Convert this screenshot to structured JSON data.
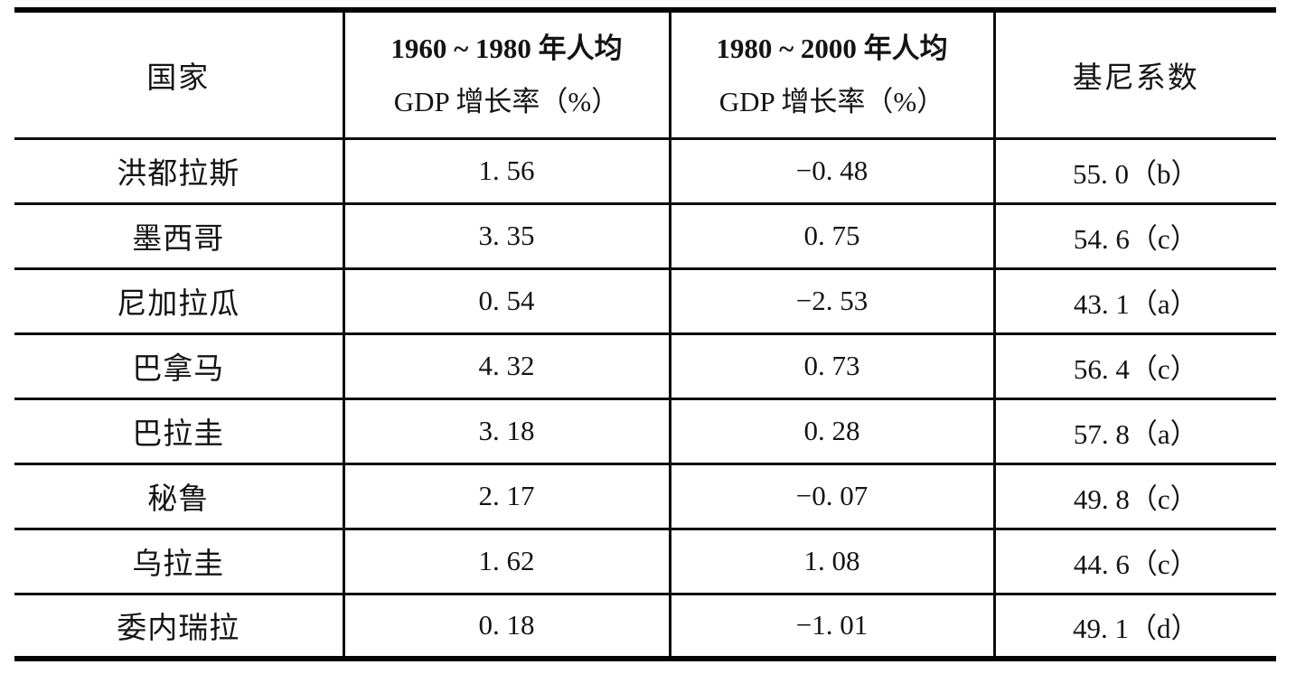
{
  "table": {
    "header": {
      "col1": "国家",
      "col2_line1": "1960 ~ 1980 年人均",
      "col2_line2": "GDP 增长率（%）",
      "col3_line1": "1980 ~ 2000 年人均",
      "col3_line2": "GDP 增长率（%）",
      "col4": "基尼系数"
    },
    "rows": [
      {
        "country": "洪都拉斯",
        "gdp1": "1. 56",
        "gdp2": "−0. 48",
        "gini": "55. 0（b）"
      },
      {
        "country": "墨西哥",
        "gdp1": "3. 35",
        "gdp2": "0. 75",
        "gini": "54. 6（c）"
      },
      {
        "country": "尼加拉瓜",
        "gdp1": "0. 54",
        "gdp2": "−2. 53",
        "gini": "43. 1（a）"
      },
      {
        "country": "巴拿马",
        "gdp1": "4. 32",
        "gdp2": "0. 73",
        "gini": "56. 4（c）"
      },
      {
        "country": "巴拉圭",
        "gdp1": "3. 18",
        "gdp2": "0. 28",
        "gini": "57. 8（a）"
      },
      {
        "country": "秘鲁",
        "gdp1": "2. 17",
        "gdp2": "−0. 07",
        "gini": "49. 8（c）"
      },
      {
        "country": "乌拉圭",
        "gdp1": "1. 62",
        "gdp2": "1. 08",
        "gini": "44. 6（c）"
      },
      {
        "country": "委内瑞拉",
        "gdp1": "0. 18",
        "gdp2": "−1. 01",
        "gini": "49. 1（d）"
      }
    ]
  },
  "chart_data": {
    "type": "table",
    "columns": [
      "国家",
      "1960~1980 年人均 GDP 增长率（%）",
      "1980~2000 年人均 GDP 增长率（%）",
      "基尼系数"
    ],
    "rows": [
      [
        "洪都拉斯",
        1.56,
        -0.48,
        "55.0（b）"
      ],
      [
        "墨西哥",
        3.35,
        0.75,
        "54.6（c）"
      ],
      [
        "尼加拉瓜",
        0.54,
        -2.53,
        "43.1（a）"
      ],
      [
        "巴拿马",
        4.32,
        0.73,
        "56.4（c）"
      ],
      [
        "巴拉圭",
        3.18,
        0.28,
        "57.8（a）"
      ],
      [
        "秘鲁",
        2.17,
        -0.07,
        "49.8（c）"
      ],
      [
        "乌拉圭",
        1.62,
        1.08,
        "44.6（c）"
      ],
      [
        "委内瑞拉",
        0.18,
        -1.01,
        "49.1（d）"
      ]
    ]
  },
  "colors": {
    "background": "#ffffff",
    "text": "#141414",
    "border": "#050505"
  }
}
